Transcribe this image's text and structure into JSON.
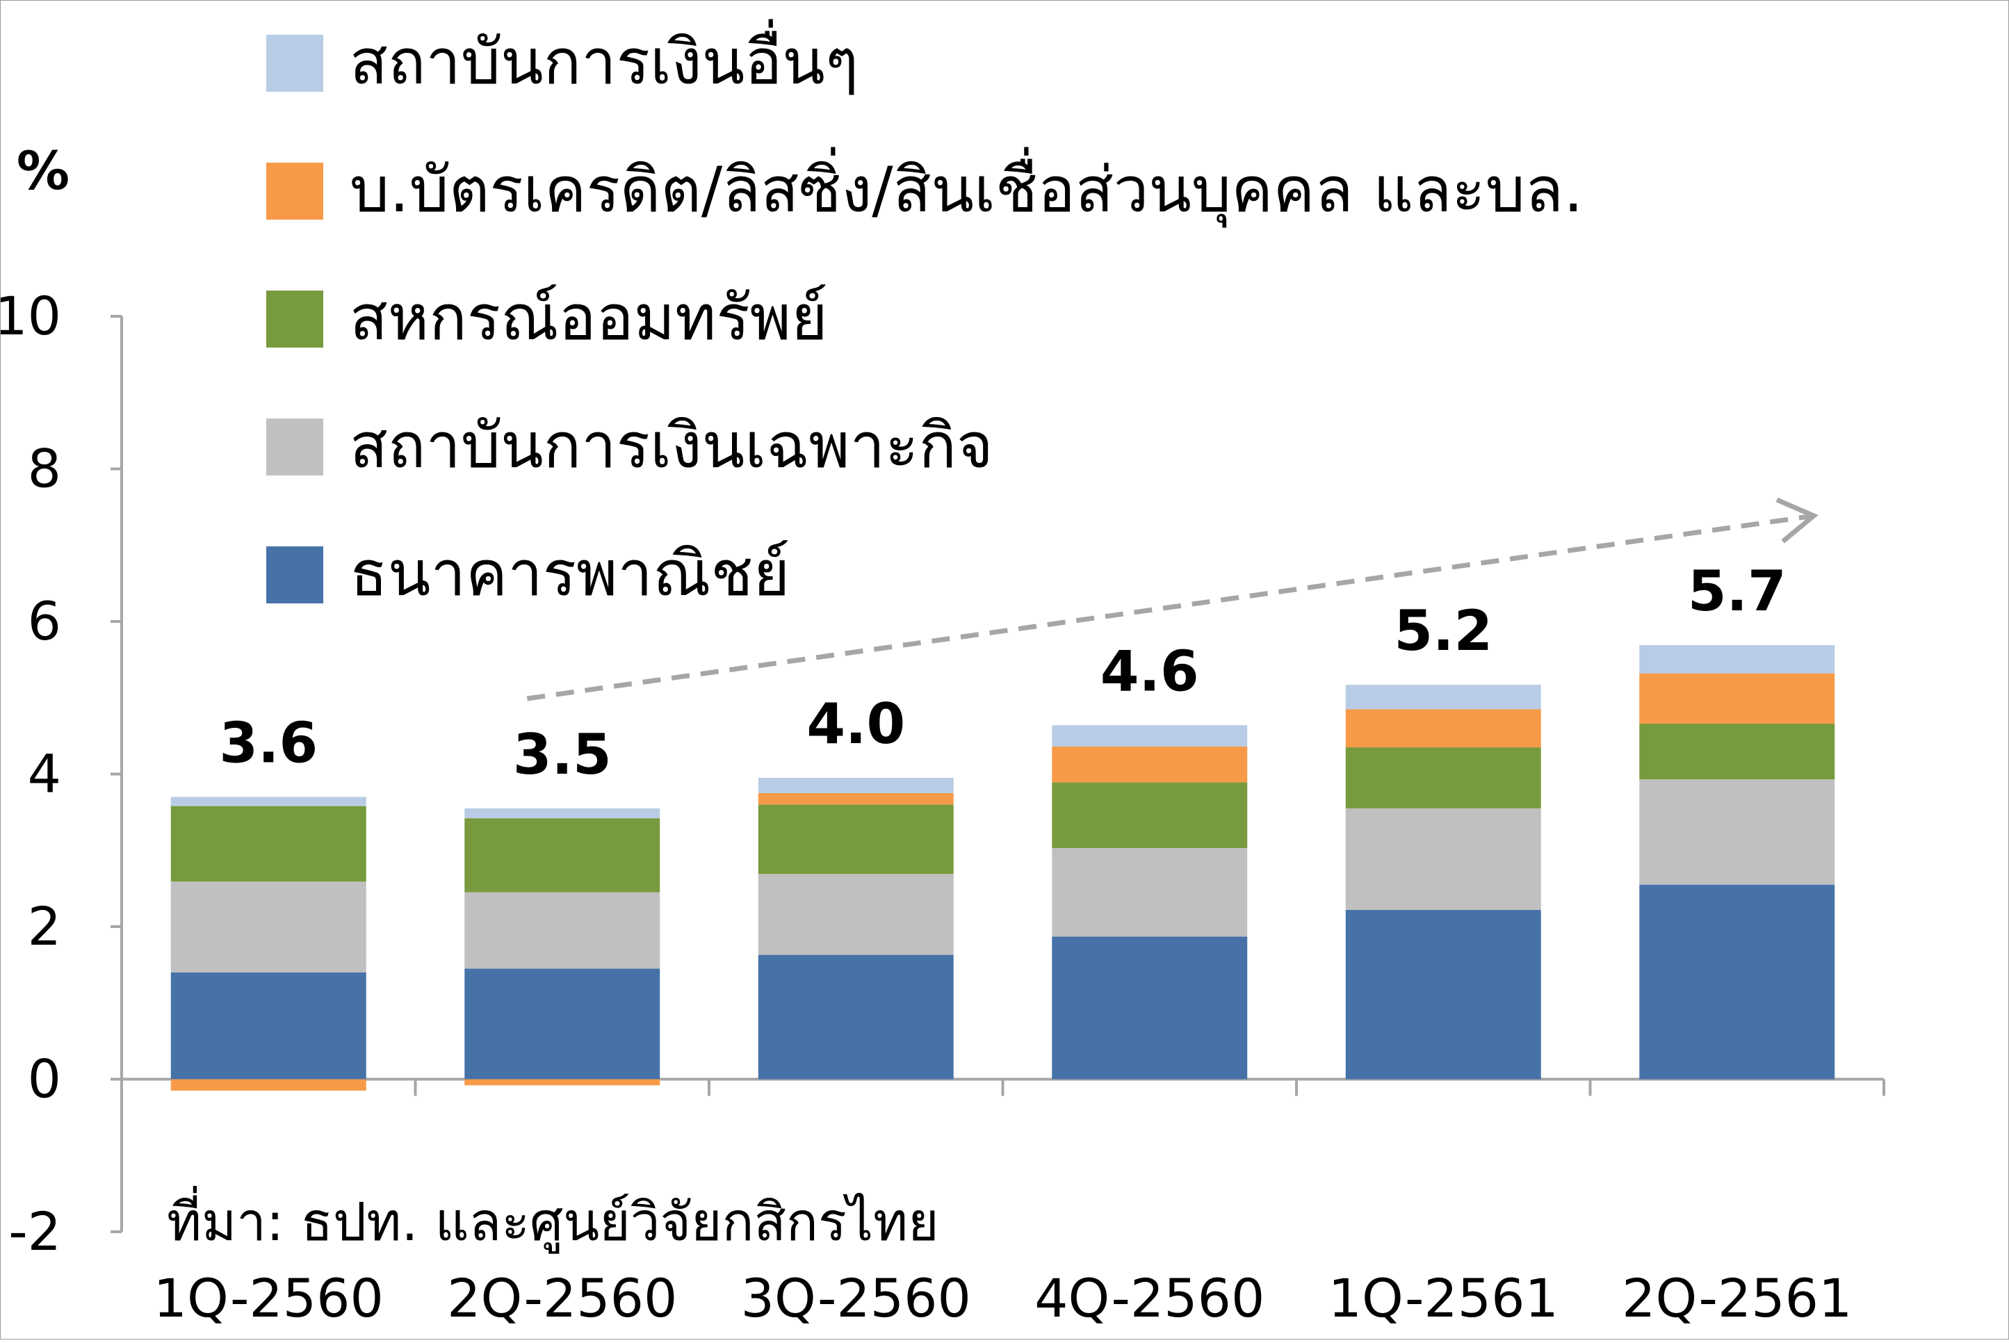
{
  "chart_data": {
    "type": "bar",
    "stacked": true,
    "title": "",
    "xlabel": "",
    "ylabel": "%",
    "ylim": [
      -2,
      10
    ],
    "yticks": [
      "-2",
      "0",
      "2",
      "4",
      "6",
      "8",
      "10"
    ],
    "grid": false,
    "legend_position": "top-left",
    "categories": [
      "1Q-2560",
      "2Q-2560",
      "3Q-2560",
      "4Q-2560",
      "1Q-2561",
      "2Q-2561"
    ],
    "totals": [
      "3.6",
      "3.5",
      "4.0",
      "4.6",
      "5.2",
      "5.7"
    ],
    "series": [
      {
        "name": "ธนาคารพาณิชย์",
        "color": "#4672a8",
        "values": [
          1.4,
          1.45,
          1.63,
          1.87,
          2.22,
          2.55
        ]
      },
      {
        "name": "สถาบันการเงินเฉพาะกิจ",
        "color": "#c0c0c0",
        "values": [
          1.19,
          1.0,
          1.06,
          1.16,
          1.33,
          1.38
        ]
      },
      {
        "name": "สหกรณ์ออมทรัพย์",
        "color": "#789a3e",
        "values": [
          0.99,
          0.97,
          0.91,
          0.86,
          0.8,
          0.73
        ]
      },
      {
        "name": "บ.บัตรเครดิต/ลิสซิ่ง/สินเชื่อส่วนบุคคล และบล.",
        "color": "#f79a48",
        "values": [
          -0.15,
          -0.08,
          0.15,
          0.47,
          0.5,
          0.66
        ]
      },
      {
        "name": "สถาบันการเงินอื่นๆ",
        "color": "#b8cde5",
        "values": [
          0.12,
          0.13,
          0.2,
          0.28,
          0.32,
          0.37
        ]
      }
    ],
    "legend_order": [
      4,
      3,
      2,
      1,
      0
    ],
    "trend_arrow": {
      "from_category": 1,
      "to_category": 5,
      "color": "#a6a6a6",
      "style": "dashed"
    },
    "annotation": "ที่มา: ธปท. และศูนย์วิจัยกสิกรไทย"
  }
}
